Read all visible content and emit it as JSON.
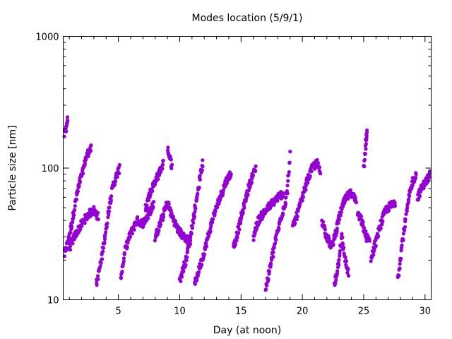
{
  "chart_data": {
    "type": "scatter",
    "title": "Modes location (5/9/1)",
    "xlabel": "Day (at noon)",
    "ylabel": "Particle size [nm]",
    "xlim": [
      0.5,
      30.5
    ],
    "ylim": [
      10,
      1000
    ],
    "log_y": true,
    "grid": false,
    "legend": "none",
    "x_ticks": [
      5,
      10,
      15,
      20,
      25,
      30
    ],
    "y_ticks": [
      10,
      100,
      1000
    ],
    "marker_color": "#9400d3",
    "approximate_mode_tracks": [
      [
        [
          0.6,
          22
        ],
        [
          0.9,
          28
        ],
        [
          1.2,
          38
        ],
        [
          1.5,
          55
        ],
        [
          1.8,
          75
        ],
        [
          2.1,
          95
        ],
        [
          2.3,
          115
        ],
        [
          2.6,
          135
        ],
        [
          2.8,
          140
        ]
      ],
      [
        [
          0.6,
          180
        ],
        [
          0.7,
          195
        ],
        [
          0.8,
          220
        ],
        [
          0.85,
          240
        ]
      ],
      [
        [
          1.0,
          25
        ],
        [
          1.4,
          30
        ],
        [
          1.8,
          35
        ],
        [
          2.2,
          40
        ],
        [
          2.6,
          45
        ],
        [
          3.0,
          48
        ],
        [
          3.4,
          42
        ]
      ],
      [
        [
          3.2,
          13
        ],
        [
          3.6,
          20
        ],
        [
          4.0,
          35
        ],
        [
          4.3,
          55
        ],
        [
          4.6,
          75
        ],
        [
          4.9,
          90
        ],
        [
          5.1,
          100
        ]
      ],
      [
        [
          5.2,
          15
        ],
        [
          5.6,
          25
        ],
        [
          6.0,
          32
        ],
        [
          6.5,
          40
        ],
        [
          7.0,
          38
        ],
        [
          7.5,
          45
        ],
        [
          7.9,
          55
        ]
      ],
      [
        [
          7.2,
          50
        ],
        [
          7.6,
          65
        ],
        [
          8.0,
          80
        ],
        [
          8.4,
          95
        ],
        [
          8.7,
          110
        ]
      ],
      [
        [
          8.0,
          30
        ],
        [
          8.5,
          40
        ],
        [
          9.0,
          55
        ],
        [
          9.3,
          45
        ],
        [
          9.8,
          35
        ],
        [
          10.3,
          30
        ],
        [
          10.9,
          28
        ]
      ],
      [
        [
          9.0,
          140
        ],
        [
          9.2,
          120
        ],
        [
          9.4,
          100
        ]
      ],
      [
        [
          10.0,
          14
        ],
        [
          10.5,
          20
        ],
        [
          11.0,
          35
        ],
        [
          11.4,
          60
        ],
        [
          11.7,
          90
        ],
        [
          11.9,
          110
        ]
      ],
      [
        [
          11.2,
          13
        ],
        [
          11.8,
          20
        ],
        [
          12.3,
          30
        ],
        [
          12.8,
          45
        ],
        [
          13.3,
          60
        ],
        [
          13.8,
          80
        ],
        [
          14.2,
          92
        ]
      ],
      [
        [
          14.4,
          25
        ],
        [
          14.8,
          35
        ],
        [
          15.2,
          50
        ],
        [
          15.6,
          70
        ],
        [
          15.9,
          85
        ],
        [
          16.2,
          100
        ]
      ],
      [
        [
          16.0,
          30
        ],
        [
          16.4,
          40
        ],
        [
          16.8,
          45
        ],
        [
          17.2,
          50
        ],
        [
          17.6,
          55
        ],
        [
          18.0,
          60
        ],
        [
          18.5,
          65
        ]
      ],
      [
        [
          17.0,
          12
        ],
        [
          17.4,
          18
        ],
        [
          17.8,
          28
        ],
        [
          18.2,
          40
        ],
        [
          18.6,
          55
        ],
        [
          18.8,
          70
        ],
        [
          19.0,
          140
        ]
      ],
      [
        [
          19.2,
          35
        ],
        [
          19.6,
          45
        ],
        [
          20.0,
          60
        ],
        [
          20.4,
          80
        ],
        [
          20.8,
          100
        ],
        [
          21.2,
          110
        ],
        [
          21.5,
          90
        ]
      ],
      [
        [
          21.6,
          40
        ],
        [
          22.0,
          30
        ],
        [
          22.4,
          25
        ],
        [
          22.8,
          35
        ],
        [
          23.2,
          50
        ],
        [
          23.6,
          60
        ],
        [
          24.0,
          65
        ],
        [
          24.4,
          55
        ]
      ],
      [
        [
          22.6,
          13
        ],
        [
          22.9,
          18
        ],
        [
          23.2,
          30
        ],
        [
          23.5,
          20
        ],
        [
          23.8,
          15
        ]
      ],
      [
        [
          24.5,
          45
        ],
        [
          24.8,
          40
        ],
        [
          25.0,
          35
        ],
        [
          25.2,
          30
        ],
        [
          25.5,
          28
        ]
      ],
      [
        [
          25.0,
          100
        ],
        [
          25.1,
          130
        ],
        [
          25.2,
          170
        ],
        [
          25.3,
          190
        ]
      ],
      [
        [
          25.6,
          20
        ],
        [
          26.0,
          28
        ],
        [
          26.4,
          38
        ],
        [
          26.8,
          48
        ],
        [
          27.2,
          52
        ],
        [
          27.6,
          55
        ]
      ],
      [
        [
          27.8,
          15
        ],
        [
          28.1,
          25
        ],
        [
          28.4,
          40
        ],
        [
          28.7,
          60
        ],
        [
          29.0,
          80
        ],
        [
          29.3,
          90
        ]
      ],
      [
        [
          29.4,
          60
        ],
        [
          29.7,
          70
        ],
        [
          30.0,
          78
        ],
        [
          30.3,
          85
        ],
        [
          30.45,
          92
        ]
      ]
    ]
  }
}
